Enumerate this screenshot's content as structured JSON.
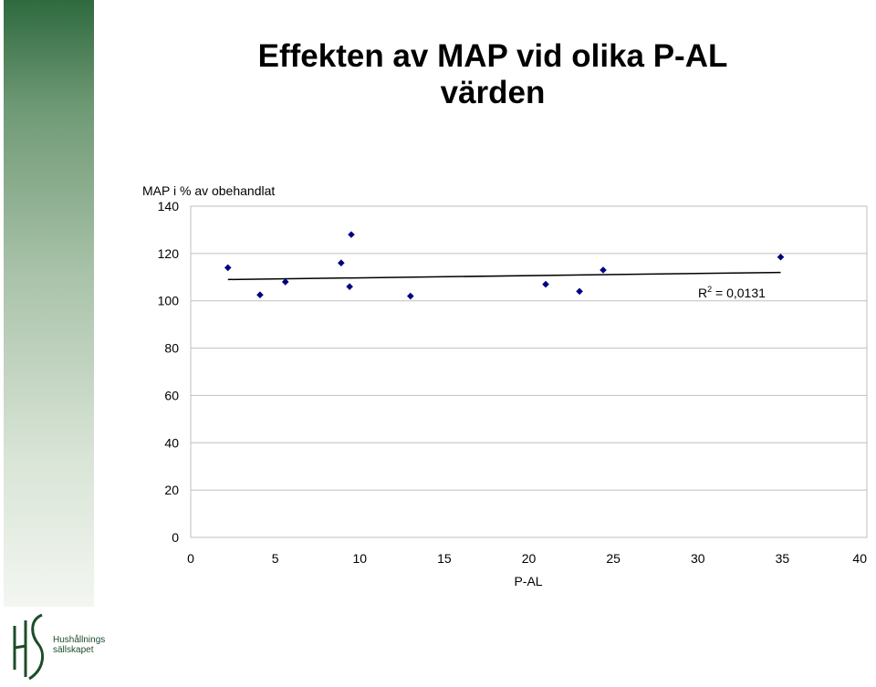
{
  "slide": {
    "title_line1": "Effekten av MAP vid olika P-AL",
    "title_line2": "värden",
    "logo_text_line1": "Hushållnings",
    "logo_text_line2": "sällskapet"
  },
  "colors": {
    "marker": "#000080",
    "trendline": "#000000",
    "gridline": "#bfbfbf",
    "band_top": "#2f6a3f",
    "band_bottom": "#f3f6f1"
  },
  "chart_data": {
    "type": "scatter",
    "ylabel": "MAP i % av obehandlat",
    "xlabel": "P-AL",
    "xlim": [
      0,
      40
    ],
    "ylim": [
      0,
      140
    ],
    "xticks": [
      "0",
      "5",
      "10",
      "15",
      "20",
      "25",
      "30",
      "35",
      "40"
    ],
    "yticks": [
      "0",
      "20",
      "40",
      "60",
      "80",
      "100",
      "120",
      "140"
    ],
    "grid": "horizontal",
    "annotation": {
      "r2_label": "R",
      "r2_superscript": "2",
      "r2_text": " = 0,0131"
    },
    "points": [
      {
        "x": 2.2,
        "y": 114
      },
      {
        "x": 4.1,
        "y": 102.5
      },
      {
        "x": 5.6,
        "y": 108
      },
      {
        "x": 8.9,
        "y": 116
      },
      {
        "x": 9.4,
        "y": 106
      },
      {
        "x": 9.5,
        "y": 128
      },
      {
        "x": 13.0,
        "y": 102
      },
      {
        "x": 21.0,
        "y": 107
      },
      {
        "x": 23.0,
        "y": 104
      },
      {
        "x": 24.4,
        "y": 113
      },
      {
        "x": 34.9,
        "y": 118.5
      }
    ],
    "trendline": {
      "x": [
        2.2,
        34.9
      ],
      "y": [
        109,
        112
      ]
    }
  }
}
